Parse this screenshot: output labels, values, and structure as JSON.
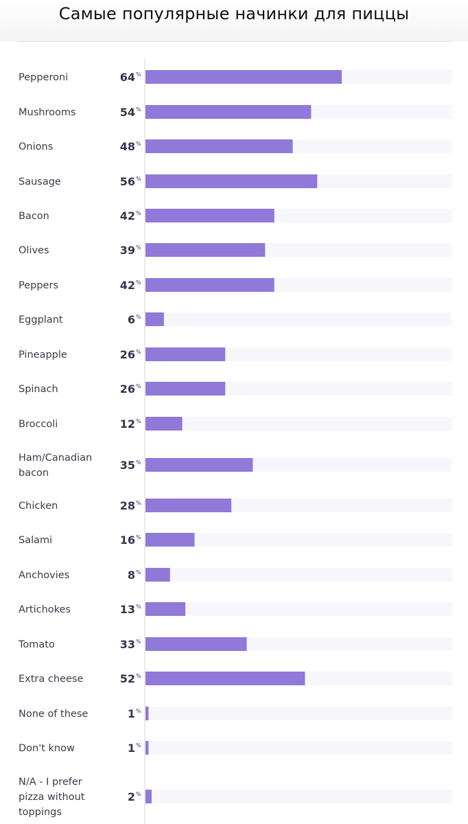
{
  "title": "Самые популярные начинки для пиццы",
  "chart_data": {
    "type": "bar",
    "orientation": "horizontal",
    "title": "Самые популярные начинки для пиццы",
    "unit_symbol": "%",
    "xlim": [
      0,
      100
    ],
    "bar_color": "#9079d9",
    "track_color": "#f7f6fb",
    "categories": [
      "Pepperoni",
      "Mushrooms",
      "Onions",
      "Sausage",
      "Bacon",
      "Olives",
      "Peppers",
      "Eggplant",
      "Pineapple",
      "Spinach",
      "Broccoli",
      "Ham/Canadian bacon",
      "Chicken",
      "Salami",
      "Anchovies",
      "Artichokes",
      "Tomato",
      "Extra cheese",
      "None of these",
      "Don't know",
      "N/A - I prefer pizza without toppings"
    ],
    "values": [
      64,
      54,
      48,
      56,
      42,
      39,
      42,
      6,
      26,
      26,
      12,
      35,
      28,
      16,
      8,
      13,
      33,
      52,
      1,
      1,
      2
    ]
  }
}
